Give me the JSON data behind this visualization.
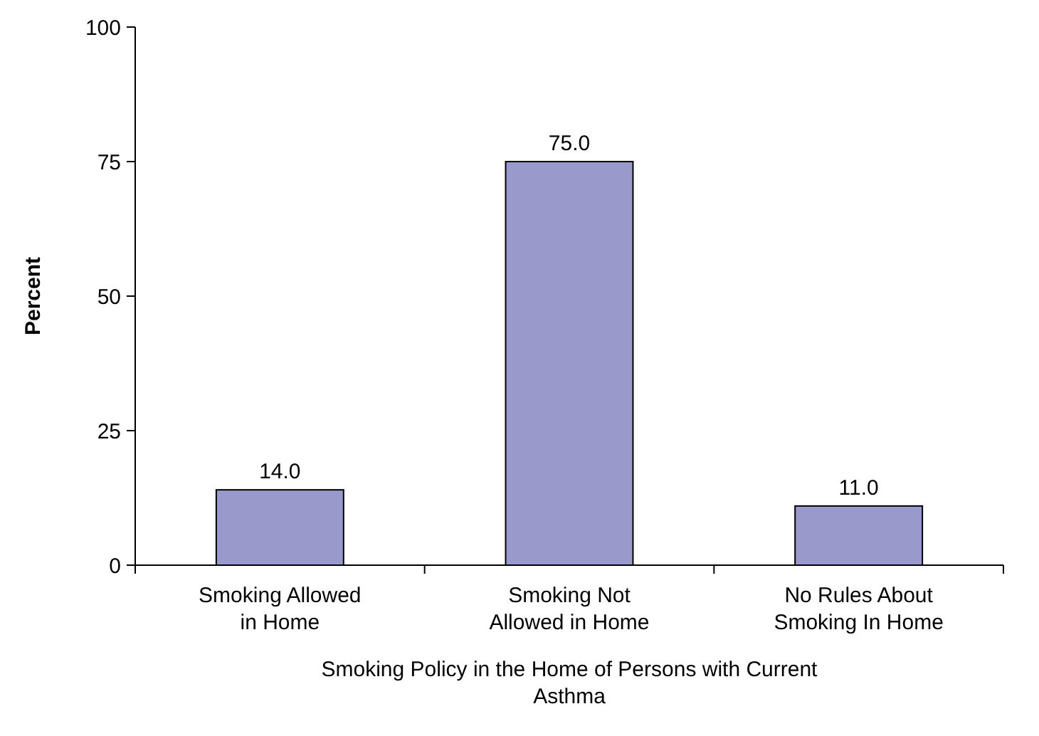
{
  "chart_data": {
    "type": "bar",
    "categories": [
      "Smoking Allowed in Home",
      "Smoking Not Allowed in Home",
      "No Rules About Smoking In Home"
    ],
    "values": [
      14,
      75,
      11
    ],
    "value_labels": [
      "14.0",
      "75.0",
      "11.0"
    ],
    "color": "#9999cc",
    "ylabel": "Percent",
    "xlabel": "Smoking Policy in the Home of Persons with Current Asthma",
    "ylim": [
      0,
      100
    ],
    "yticks": [
      0,
      25,
      50,
      75,
      100
    ],
    "grid": false
  }
}
